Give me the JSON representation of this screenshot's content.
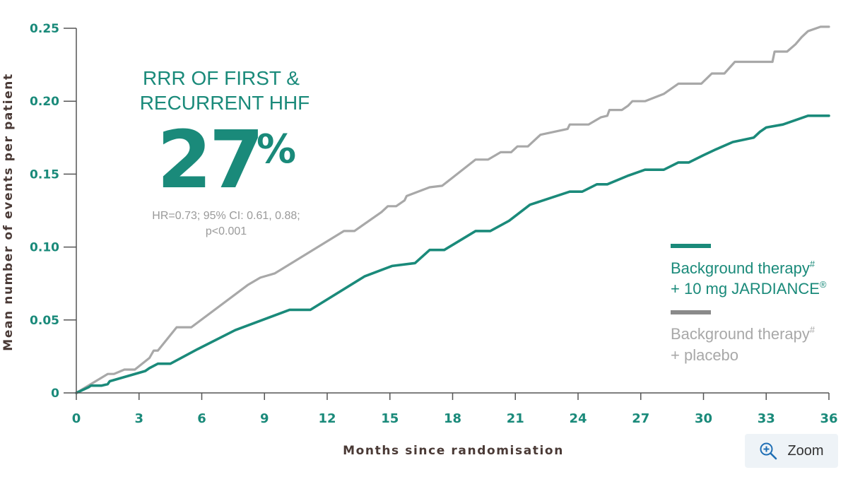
{
  "annotation": {
    "line1": "RRR OF FIRST &",
    "line2": "RECURRENT HHF",
    "value": "27",
    "unit": "%",
    "stats_line1": "HR=0.73; 95% CI: 0.61, 0.88;",
    "stats_line2": "p<0.001"
  },
  "legend": {
    "entries": [
      {
        "line1": "Background therapy",
        "sup1": "#",
        "line2": "+ 10 mg JARDIANCE",
        "sup2": "®",
        "color": "#1a8a7a"
      },
      {
        "line1": "Background therapy",
        "sup1": "#",
        "line2": "+ placebo",
        "sup2": "",
        "color": "#a8a8a8"
      }
    ]
  },
  "zoom": {
    "label": "Zoom",
    "icon": "zoom-in-icon"
  },
  "chart_data": {
    "type": "line",
    "xlabel": "Months since randomisation",
    "ylabel": "Mean number of events per patient",
    "xlim": [
      0,
      36
    ],
    "ylim": [
      0,
      0.25
    ],
    "x_ticks": [
      0,
      3,
      6,
      9,
      12,
      15,
      18,
      21,
      24,
      27,
      30,
      33,
      36
    ],
    "x_tick_labels": [
      "0",
      "3",
      "6",
      "9",
      "12",
      "15",
      "18",
      "21",
      "24",
      "27",
      "30",
      "33",
      "36"
    ],
    "y_ticks": [
      0,
      0.05,
      0.1,
      0.15,
      0.2,
      0.25
    ],
    "y_tick_labels": [
      "0",
      "0.05",
      "0.10",
      "0.15",
      "0.20",
      "0.25"
    ],
    "grid": false,
    "legend_position": "right",
    "series": [
      {
        "color": "#a8a8a8",
        "x": [
          0,
          1.5,
          1.8,
          2.3,
          2.8,
          3.5,
          3.7,
          3.9,
          4.8,
          5.1,
          5.5,
          8.2,
          8.8,
          9.5,
          12.8,
          13.3,
          14.6,
          14.9,
          15.3,
          15.7,
          15.8,
          16.9,
          17.5,
          19.1,
          19.7,
          20.3,
          20.8,
          21.1,
          21.6,
          22.2,
          23.5,
          23.6,
          24.5,
          25.1,
          25.4,
          25.5,
          26.1,
          26.4,
          26.6,
          27.2,
          28.1,
          28.8,
          29.9,
          30.4,
          31.0,
          31.5,
          33.3,
          33.4,
          34.0,
          34.4,
          34.7,
          35.0,
          35.6,
          36.0
        ],
        "y": [
          0,
          0.013,
          0.013,
          0.016,
          0.016,
          0.024,
          0.029,
          0.029,
          0.045,
          0.045,
          0.045,
          0.074,
          0.079,
          0.082,
          0.111,
          0.111,
          0.124,
          0.128,
          0.128,
          0.132,
          0.135,
          0.141,
          0.142,
          0.16,
          0.16,
          0.165,
          0.165,
          0.169,
          0.169,
          0.177,
          0.181,
          0.184,
          0.184,
          0.189,
          0.19,
          0.194,
          0.194,
          0.197,
          0.2,
          0.2,
          0.205,
          0.212,
          0.212,
          0.219,
          0.219,
          0.227,
          0.227,
          0.234,
          0.234,
          0.239,
          0.244,
          0.248,
          0.251,
          0.251
        ]
      },
      {
        "color": "#1a8a7a",
        "x": [
          0,
          0.6,
          0.7,
          1.1,
          1.2,
          1.5,
          1.6,
          3.3,
          3.5,
          3.9,
          4.1,
          4.5,
          5.8,
          7.6,
          10.2,
          11.2,
          13.8,
          15.1,
          16.2,
          16.9,
          17.6,
          19.1,
          19.8,
          20.7,
          21.7,
          23.6,
          24.2,
          24.9,
          25.4,
          26.4,
          27.2,
          28.1,
          28.8,
          29.3,
          30.0,
          30.6,
          31.4,
          32.4,
          32.7,
          33.0,
          33.8,
          35.0,
          36.0
        ],
        "y": [
          0,
          0.004,
          0.005,
          0.005,
          0.005,
          0.006,
          0.008,
          0.015,
          0.017,
          0.02,
          0.02,
          0.02,
          0.03,
          0.043,
          0.057,
          0.057,
          0.08,
          0.087,
          0.089,
          0.098,
          0.098,
          0.111,
          0.111,
          0.118,
          0.129,
          0.138,
          0.138,
          0.143,
          0.143,
          0.149,
          0.153,
          0.153,
          0.158,
          0.158,
          0.163,
          0.167,
          0.172,
          0.175,
          0.179,
          0.182,
          0.184,
          0.19,
          0.19
        ]
      }
    ]
  }
}
